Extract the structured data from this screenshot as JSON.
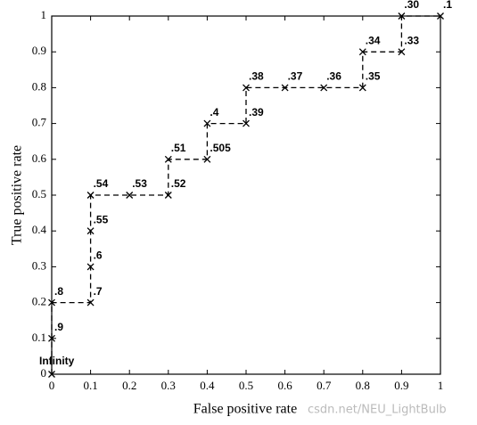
{
  "chart_data": {
    "type": "line",
    "xlabel": "False positive rate",
    "ylabel": "True positive rate",
    "x": [
      0,
      0,
      0,
      0.1,
      0.1,
      0.1,
      0.1,
      0.2,
      0.3,
      0.3,
      0.4,
      0.4,
      0.5,
      0.5,
      0.6,
      0.7,
      0.8,
      0.8,
      0.9,
      0.9,
      1
    ],
    "values": [
      0,
      0.1,
      0.2,
      0.2,
      0.3,
      0.4,
      0.5,
      0.5,
      0.5,
      0.6,
      0.6,
      0.7,
      0.7,
      0.8,
      0.8,
      0.8,
      0.8,
      0.9,
      0.9,
      1,
      1
    ],
    "point_labels": [
      "Infinity",
      ".9",
      ".8",
      ".7",
      ".6",
      ".55",
      ".54",
      ".53",
      ".52",
      ".51",
      ".505",
      ".4",
      ".39",
      ".38",
      ".37",
      ".36",
      ".35",
      ".34",
      ".33",
      ".30",
      ".1"
    ],
    "color": "#000000",
    "dashed": true,
    "marker": "x",
    "xlim": [
      0,
      1
    ],
    "ylim": [
      0,
      1
    ],
    "xticks": [
      0,
      0.1,
      0.2,
      0.3,
      0.4,
      0.5,
      0.6,
      0.7,
      0.8,
      0.9,
      1
    ],
    "yticks": [
      0,
      0.1,
      0.2,
      0.3,
      0.4,
      0.5,
      0.6,
      0.7,
      0.8,
      0.9,
      1
    ],
    "watermark": "csdn.net/NEU_LightBulb"
  }
}
